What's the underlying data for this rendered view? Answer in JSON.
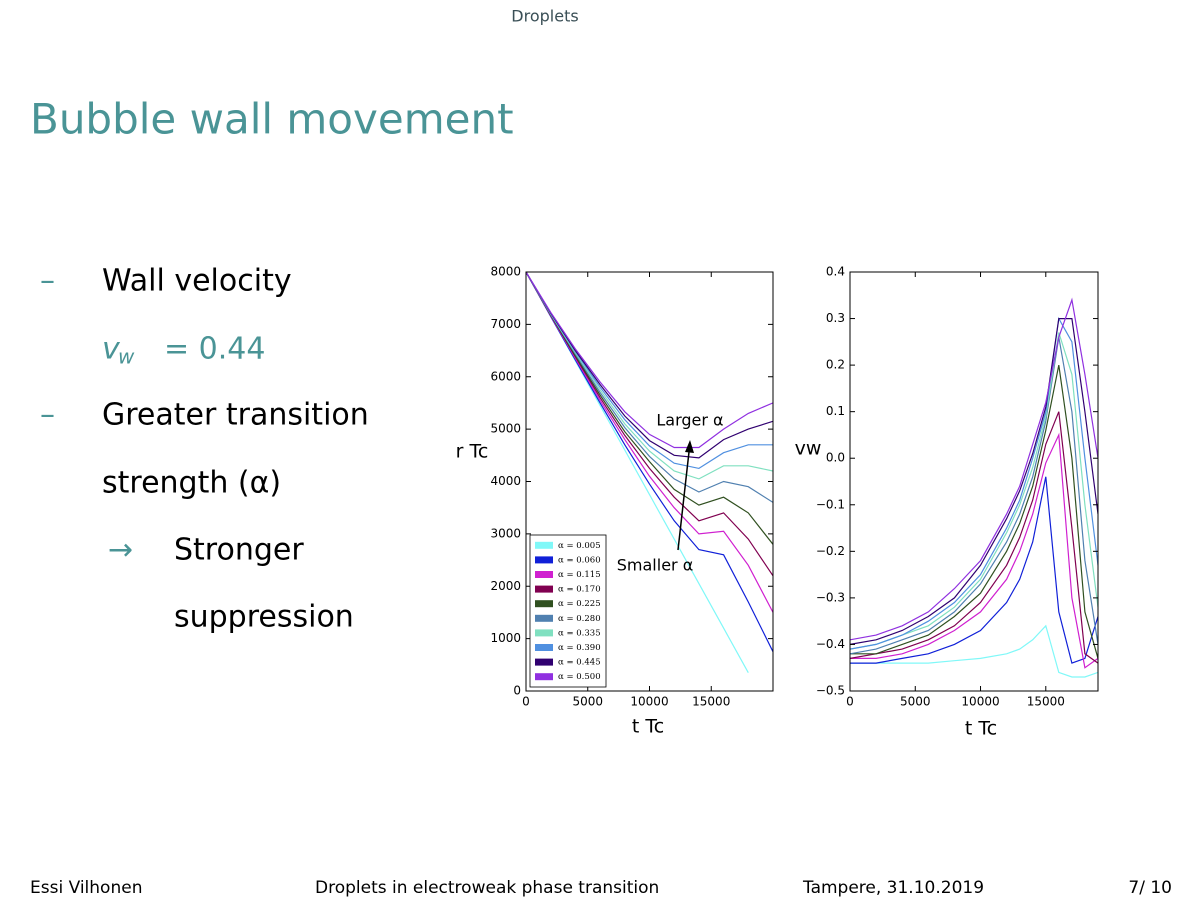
{
  "header": "Droplets",
  "title": "Bubble wall movement",
  "bullets": [
    {
      "marker": "–",
      "text": "Wall velocity"
    },
    {
      "var": "v",
      "sub": "w",
      "rest": "= 0.44"
    },
    {
      "marker": "–",
      "text": "Greater transition"
    },
    {
      "text": "strength (α)"
    },
    {
      "marker": "→",
      "text": "Stronger"
    },
    {
      "text": "suppression"
    }
  ],
  "footer": [
    "Essi Vilhonen",
    "Droplets in electroweak phase transition",
    "Tampere, 31.10.2019",
    "7/ 10"
  ],
  "chart_data": [
    {
      "type": "line",
      "xlabel": "t Tc",
      "ylabel": "r Tc",
      "legend": "lower left",
      "x": [
        0,
        2000,
        4000,
        6000,
        8000,
        10000,
        12000,
        14000,
        16000,
        18000,
        20000
      ],
      "xlim": [
        0,
        20000
      ],
      "xticks": [
        0,
        5000,
        10000,
        15000
      ],
      "ylim": [
        0,
        8000
      ],
      "yticks": [
        0,
        1000,
        2000,
        3000,
        4000,
        5000,
        6000,
        7000,
        8000
      ],
      "annotations": [
        "Larger α",
        "Smaller α"
      ],
      "series": [
        {
          "name": "α = 0.005",
          "color": "#80f8f8",
          "values": [
            8000,
            7150,
            6300,
            5450,
            4600,
            3750,
            2900,
            2050,
            1200,
            350,
            null
          ]
        },
        {
          "name": "α = 0.060",
          "color": "#1020d8",
          "values": [
            8000,
            7150,
            6320,
            5500,
            4700,
            3950,
            3250,
            2700,
            2600,
            1700,
            750
          ]
        },
        {
          "name": "α = 0.115",
          "color": "#d020d0",
          "values": [
            8000,
            7160,
            6350,
            5550,
            4800,
            4100,
            3500,
            3000,
            3050,
            2400,
            1500
          ]
        },
        {
          "name": "α = 0.170",
          "color": "#800050",
          "values": [
            8000,
            7170,
            6380,
            5600,
            4880,
            4250,
            3700,
            3250,
            3400,
            2900,
            2200
          ]
        },
        {
          "name": "α = 0.225",
          "color": "#305020",
          "values": [
            8000,
            7180,
            6400,
            5650,
            4950,
            4380,
            3850,
            3550,
            3700,
            3400,
            2800
          ]
        },
        {
          "name": "α = 0.280",
          "color": "#5080b0",
          "values": [
            8000,
            7190,
            6430,
            5700,
            5030,
            4480,
            4050,
            3800,
            4000,
            3900,
            3600
          ]
        },
        {
          "name": "α = 0.335",
          "color": "#80e0c0",
          "values": [
            8000,
            7200,
            6460,
            5750,
            5100,
            4580,
            4200,
            4050,
            4300,
            4300,
            4200
          ]
        },
        {
          "name": "α = 0.390",
          "color": "#5090e0",
          "values": [
            8000,
            7210,
            6480,
            5800,
            5180,
            4680,
            4350,
            4250,
            4550,
            4700,
            4700
          ]
        },
        {
          "name": "α = 0.445",
          "color": "#300070",
          "values": [
            8000,
            7220,
            6500,
            5850,
            5250,
            4780,
            4500,
            4450,
            4800,
            5000,
            5150
          ]
        },
        {
          "name": "α = 0.500",
          "color": "#9030e0",
          "values": [
            8000,
            7230,
            6530,
            5900,
            5330,
            4900,
            4650,
            4650,
            5000,
            5300,
            5500
          ]
        }
      ]
    },
    {
      "type": "line",
      "xlabel": "t Tc",
      "ylabel": "vw",
      "x": [
        0,
        2000,
        4000,
        6000,
        8000,
        10000,
        12000,
        13000,
        14000,
        15000,
        16000,
        17000,
        18000,
        19000
      ],
      "xlim": [
        0,
        19000
      ],
      "xticks": [
        0,
        5000,
        10000,
        15000
      ],
      "ylim": [
        -0.5,
        0.4
      ],
      "yticks": [
        {
          "value": -0.5,
          "label": "−0.5"
        },
        {
          "value": -0.4,
          "label": "−0.4"
        },
        {
          "value": -0.3,
          "label": "−0.3"
        },
        {
          "value": -0.2,
          "label": "−0.2"
        },
        {
          "value": -0.1,
          "label": "−0.1"
        },
        {
          "value": 0,
          "label": "0.0"
        },
        0.1,
        0.2,
        0.3,
        0.4
      ],
      "series": [
        {
          "color": "#80f8f8",
          "values": [
            -0.44,
            -0.44,
            -0.44,
            -0.44,
            -0.435,
            -0.43,
            -0.42,
            -0.41,
            -0.39,
            -0.36,
            -0.46,
            -0.47,
            -0.47,
            -0.46
          ]
        },
        {
          "color": "#1020d8",
          "values": [
            -0.44,
            -0.44,
            -0.43,
            -0.42,
            -0.4,
            -0.37,
            -0.31,
            -0.26,
            -0.18,
            -0.04,
            -0.33,
            -0.44,
            -0.43,
            -0.34
          ]
        },
        {
          "color": "#d020d0",
          "values": [
            -0.43,
            -0.43,
            -0.42,
            -0.4,
            -0.37,
            -0.33,
            -0.26,
            -0.2,
            -0.12,
            -0.01,
            0.05,
            -0.3,
            -0.45,
            -0.43
          ]
        },
        {
          "color": "#800050",
          "values": [
            -0.43,
            -0.42,
            -0.41,
            -0.39,
            -0.36,
            -0.31,
            -0.23,
            -0.17,
            -0.09,
            0.03,
            0.1,
            -0.15,
            -0.42,
            -0.44
          ]
        },
        {
          "color": "#305020",
          "values": [
            -0.42,
            -0.42,
            -0.4,
            -0.38,
            -0.34,
            -0.29,
            -0.2,
            -0.14,
            -0.06,
            0.06,
            0.2,
            0.0,
            -0.33,
            -0.43
          ]
        },
        {
          "color": "#5080b0",
          "values": [
            -0.42,
            -0.41,
            -0.39,
            -0.37,
            -0.33,
            -0.27,
            -0.18,
            -0.12,
            -0.04,
            0.08,
            0.26,
            0.1,
            -0.22,
            -0.4
          ]
        },
        {
          "color": "#80e0c0",
          "values": [
            -0.41,
            -0.4,
            -0.38,
            -0.36,
            -0.32,
            -0.26,
            -0.16,
            -0.1,
            -0.02,
            0.09,
            0.27,
            0.18,
            -0.1,
            -0.32
          ]
        },
        {
          "color": "#5090e0",
          "values": [
            -0.41,
            -0.4,
            -0.38,
            -0.35,
            -0.31,
            -0.25,
            -0.15,
            -0.09,
            0.0,
            0.1,
            0.3,
            0.25,
            0.0,
            -0.23
          ]
        },
        {
          "color": "#300070",
          "values": [
            -0.4,
            -0.39,
            -0.37,
            -0.34,
            -0.3,
            -0.23,
            -0.13,
            -0.07,
            0.01,
            0.11,
            0.3,
            0.3,
            0.1,
            -0.12
          ]
        },
        {
          "color": "#9030e0",
          "values": [
            -0.39,
            -0.38,
            -0.36,
            -0.33,
            -0.28,
            -0.22,
            -0.12,
            -0.06,
            0.03,
            0.12,
            0.26,
            0.34,
            0.18,
            0.0
          ]
        }
      ]
    }
  ]
}
